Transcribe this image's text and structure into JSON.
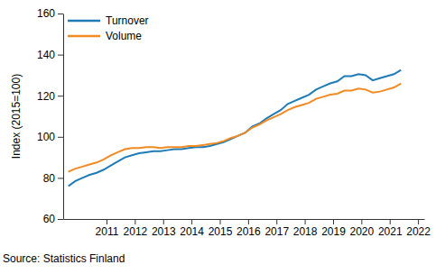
{
  "chart_data": {
    "type": "line",
    "y_label": "Index (2015=100)",
    "source": "Source: Statistics Finland",
    "legend": "upper left",
    "grid": false,
    "x": [
      2009.65,
      2009.9,
      2010.15,
      2010.4,
      2010.65,
      2010.9,
      2011.15,
      2011.4,
      2011.65,
      2011.9,
      2012.15,
      2012.4,
      2012.65,
      2012.9,
      2013.15,
      2013.4,
      2013.65,
      2013.9,
      2014.15,
      2014.4,
      2014.65,
      2014.9,
      2015.15,
      2015.4,
      2015.65,
      2015.9,
      2016.15,
      2016.4,
      2016.65,
      2016.9,
      2017.15,
      2017.4,
      2017.65,
      2017.9,
      2018.15,
      2018.4,
      2018.65,
      2018.9,
      2019.15,
      2019.4,
      2019.65,
      2019.9,
      2020.15,
      2020.4,
      2020.65,
      2020.9,
      2021.15,
      2021.4
    ],
    "xlim": [
      2009.47,
      2022.22
    ],
    "xticks": [
      2011,
      2012,
      2013,
      2014,
      2015,
      2016,
      2017,
      2018,
      2019,
      2020,
      2021,
      2022
    ],
    "ylim": [
      60,
      160
    ],
    "yticks": [
      60,
      80,
      100,
      120,
      140,
      160
    ],
    "series": [
      {
        "name": "Turnover",
        "color": "#1f7bb6",
        "values": [
          76,
          78.5,
          80,
          81.5,
          82.5,
          84,
          86,
          88,
          90,
          91,
          92,
          92.5,
          93,
          93,
          93.5,
          94,
          94,
          94.5,
          95,
          95,
          95.5,
          96.5,
          97.5,
          99,
          100.5,
          102,
          105,
          106.5,
          109,
          111,
          113,
          116,
          117.5,
          119,
          120.5,
          123,
          124.5,
          126,
          127,
          129.5,
          129.5,
          130.5,
          130,
          127.5,
          128.5,
          129.5,
          130.5,
          132.5
        ]
      },
      {
        "name": "Volume",
        "color": "#f28a22",
        "values": [
          83,
          84.5,
          85.5,
          86.5,
          87.5,
          89,
          91,
          92.5,
          94,
          94.5,
          94.5,
          95,
          95,
          94.5,
          95,
          95,
          95,
          95.5,
          95.5,
          96,
          96.5,
          97,
          98,
          99.5,
          100.5,
          102,
          104.5,
          106,
          108,
          109.5,
          111,
          113,
          114.5,
          115.5,
          116.5,
          118.5,
          119.5,
          120.5,
          121,
          122.5,
          122.5,
          123.5,
          123,
          121.5,
          122,
          123,
          124,
          126
        ]
      }
    ]
  }
}
